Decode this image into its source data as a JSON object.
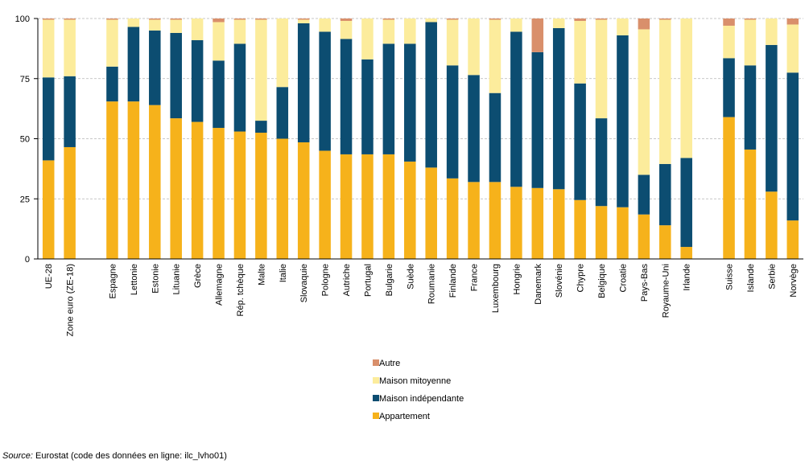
{
  "chart_data": {
    "type": "bar",
    "stacked": true,
    "categories": [
      "UE-28",
      "Zone euro (ZE-18)",
      "Espagne",
      "Lettonie",
      "Estonie",
      "Lituanie",
      "Grèce",
      "Allemagne",
      "Rép. tchèque",
      "Malte",
      "Italie",
      "Slovaquie",
      "Pologne",
      "Autriche",
      "Portugal",
      "Bulgarie",
      "Suède",
      "Roumanie",
      "Finlande",
      "France",
      "Luxembourg",
      "Hongrie",
      "Danemark",
      "Slovénie",
      "Chypre",
      "Belgique",
      "Croatie",
      "Pays-Bas",
      "Royaume-Uni",
      "Irlande",
      "Suisse",
      "Islande",
      "Serbie",
      "Norvège"
    ],
    "groups": [
      2,
      28,
      4
    ],
    "series": [
      {
        "name": "Appartement",
        "color": "#F6B21B",
        "values": [
          41,
          46.5,
          65.5,
          65.5,
          64,
          58.5,
          57,
          54.5,
          53,
          52.5,
          50,
          48.5,
          45,
          43.5,
          43.5,
          43.5,
          40.5,
          38,
          33.5,
          32,
          32,
          30,
          29.5,
          29,
          24.5,
          22,
          21.5,
          18.5,
          14,
          5,
          59,
          45.5,
          28,
          16
        ]
      },
      {
        "name": "Maison indépendante",
        "color": "#0C4D71",
        "values": [
          34.5,
          29.5,
          14.5,
          31,
          31,
          35.5,
          34,
          28,
          36.5,
          5,
          21.5,
          49.5,
          49.5,
          48,
          39.5,
          46,
          49,
          60.5,
          47,
          44.5,
          37,
          64.5,
          56.5,
          67,
          48.5,
          36.5,
          71.5,
          16.5,
          25.5,
          37,
          24.5,
          35,
          61,
          61.5
        ]
      },
      {
        "name": "Maison mitoyenne",
        "color": "#FCEC9C",
        "values": [
          24,
          23.5,
          19.5,
          3.5,
          4.5,
          5.5,
          9,
          16,
          10,
          42,
          28.5,
          1.5,
          5.5,
          7.5,
          17,
          10,
          10.5,
          1.5,
          19,
          23.5,
          30.5,
          5.5,
          0,
          4,
          26,
          41,
          7,
          60.5,
          60,
          58,
          13.5,
          19,
          11,
          20
        ]
      },
      {
        "name": "Autre",
        "color": "#D98F6B",
        "values": [
          0.5,
          0.5,
          0.5,
          0,
          0.5,
          0.5,
          0,
          1.5,
          0.5,
          0.5,
          0,
          0.5,
          0,
          1,
          0,
          0.5,
          0,
          0,
          0.5,
          0,
          0.5,
          0,
          14,
          0,
          1,
          0.5,
          0,
          4.5,
          0.5,
          0,
          3,
          0.5,
          0,
          2.5
        ]
      }
    ],
    "ylim": [
      0,
      100
    ],
    "yticks": [
      0,
      25,
      50,
      75,
      100
    ],
    "grid": true,
    "legend": {
      "placement": "bottom-center",
      "order": [
        "Autre",
        "Maison mitoyenne",
        "Maison indépendante",
        "Appartement"
      ]
    }
  },
  "source": {
    "label": "Source:",
    "text": "Eurostat (code des données en ligne: ilc_lvho01)"
  }
}
